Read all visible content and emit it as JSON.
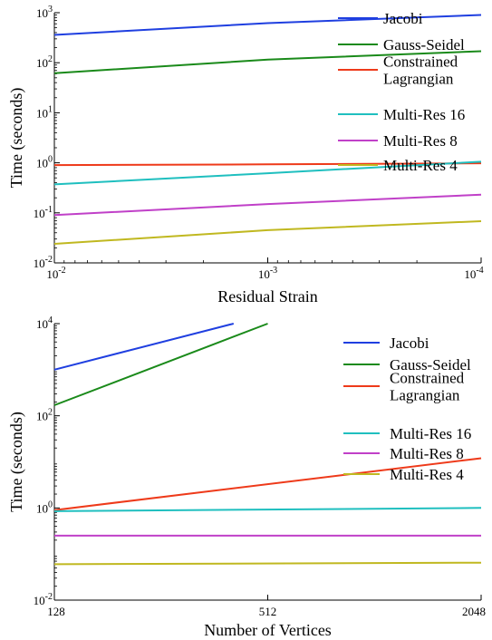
{
  "chart_data": [
    {
      "type": "line",
      "title": "",
      "xlabel": "Residual Strain",
      "ylabel": "Time (seconds)",
      "x_scale": "log",
      "x_reversed": true,
      "y_scale": "log",
      "xlim": [
        0.01,
        0.0001
      ],
      "ylim": [
        0.01,
        1000
      ],
      "x_ticks": [
        {
          "value": 0.01,
          "base": "10",
          "exp": "-2"
        },
        {
          "value": 0.001,
          "base": "10",
          "exp": "-3"
        },
        {
          "value": 0.0001,
          "base": "10",
          "exp": "-4"
        }
      ],
      "y_ticks": [
        {
          "value": 0.01,
          "base": "10",
          "exp": "-2"
        },
        {
          "value": 0.1,
          "base": "10",
          "exp": "-1"
        },
        {
          "value": 1,
          "base": "10",
          "exp": "0"
        },
        {
          "value": 10,
          "base": "10",
          "exp": "1"
        },
        {
          "value": 100,
          "base": "10",
          "exp": "2"
        },
        {
          "value": 1000,
          "base": "10",
          "exp": "3"
        }
      ],
      "legend_position": "top-right",
      "series": [
        {
          "name": "Jacobi",
          "color": "#1f3fe0",
          "x": [
            0.01,
            0.001,
            0.0001
          ],
          "y": [
            360,
            620,
            900
          ]
        },
        {
          "name": "Gauss-Seidel",
          "color": "#1a8a1a",
          "x": [
            0.01,
            0.001,
            0.0001
          ],
          "y": [
            62,
            115,
            170
          ]
        },
        {
          "name": "Constrained\nLagrangian",
          "color": "#ee3a1a",
          "x": [
            0.01,
            0.001,
            0.0001
          ],
          "y": [
            0.9,
            0.93,
            0.98
          ]
        },
        {
          "name": "Multi-Res 16",
          "color": "#1fbfbf",
          "x": [
            0.01,
            0.001,
            0.0001
          ],
          "y": [
            0.37,
            0.62,
            1.05
          ]
        },
        {
          "name": "Multi-Res 8",
          "color": "#c040c8",
          "x": [
            0.01,
            0.001,
            0.0001
          ],
          "y": [
            0.09,
            0.15,
            0.23
          ]
        },
        {
          "name": "Multi-Res 4",
          "color": "#c0b820",
          "x": [
            0.01,
            0.001,
            0.0001
          ],
          "y": [
            0.024,
            0.045,
            0.068
          ]
        }
      ]
    },
    {
      "type": "line",
      "title": "",
      "xlabel": "Number of Vertices",
      "ylabel": "Time (seconds)",
      "x_scale": "log",
      "x_reversed": false,
      "y_scale": "log",
      "xlim": [
        128,
        2048
      ],
      "ylim": [
        0.01,
        10000
      ],
      "x_ticks": [
        {
          "value": 128,
          "base": "128",
          "exp": ""
        },
        {
          "value": 512,
          "base": "512",
          "exp": ""
        },
        {
          "value": 2048,
          "base": "2048",
          "exp": ""
        }
      ],
      "y_ticks": [
        {
          "value": 0.01,
          "base": "10",
          "exp": "-2"
        },
        {
          "value": 1,
          "base": "10",
          "exp": "0"
        },
        {
          "value": 100,
          "base": "10",
          "exp": "2"
        },
        {
          "value": 10000,
          "base": "10",
          "exp": "4"
        }
      ],
      "legend_position": "top-right",
      "series": [
        {
          "name": "Jacobi",
          "color": "#1f3fe0",
          "x": [
            128,
            410
          ],
          "y": [
            1000,
            10000
          ]
        },
        {
          "name": "Gauss-Seidel",
          "color": "#1a8a1a",
          "x": [
            128,
            512
          ],
          "y": [
            170,
            10000
          ]
        },
        {
          "name": "Constrained\nLagrangian",
          "color": "#ee3a1a",
          "x": [
            128,
            2048
          ],
          "y": [
            0.9,
            12
          ]
        },
        {
          "name": "Multi-Res 16",
          "color": "#1fbfbf",
          "x": [
            128,
            2048
          ],
          "y": [
            0.85,
            1.0
          ]
        },
        {
          "name": "Multi-Res 8",
          "color": "#c040c8",
          "x": [
            128,
            2048
          ],
          "y": [
            0.25,
            0.25
          ]
        },
        {
          "name": "Multi-Res 4",
          "color": "#c0b820",
          "x": [
            128,
            2048
          ],
          "y": [
            0.06,
            0.065
          ]
        }
      ]
    }
  ]
}
